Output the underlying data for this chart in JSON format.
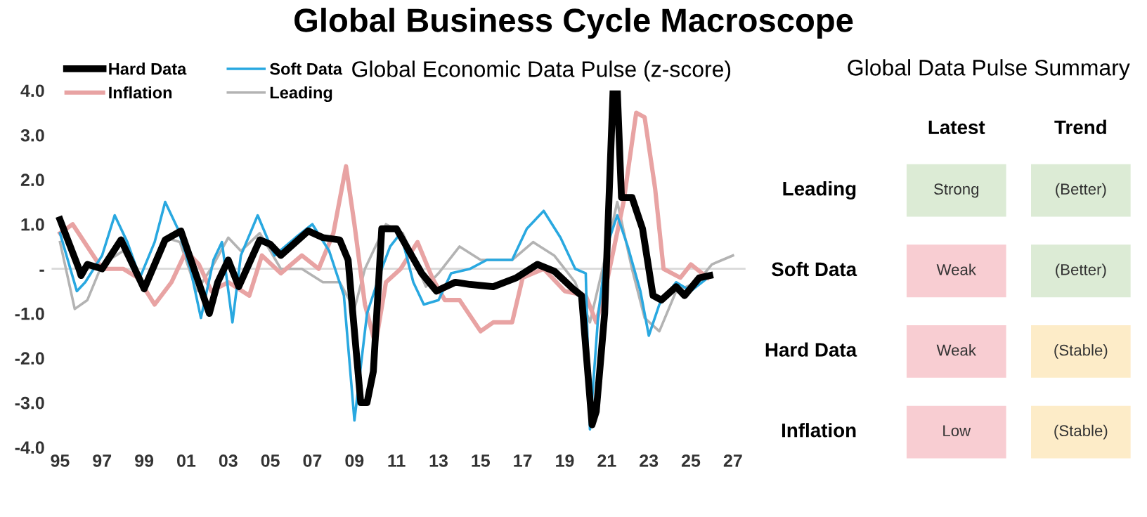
{
  "chart_data": [
    {
      "type": "line",
      "title": "Global Business Cycle Macroscope",
      "subtitle": "Global Economic Data Pulse (z-score)",
      "xlim": [
        1994.6,
        2027.6
      ],
      "ylim": [
        -4.0,
        4.0
      ],
      "xticks": [
        {
          "value": 1995,
          "label": "95"
        },
        {
          "value": 1997,
          "label": "97"
        },
        {
          "value": 1999,
          "label": "99"
        },
        {
          "value": 2001,
          "label": "01"
        },
        {
          "value": 2003,
          "label": "03"
        },
        {
          "value": 2005,
          "label": "05"
        },
        {
          "value": 2007,
          "label": "07"
        },
        {
          "value": 2009,
          "label": "09"
        },
        {
          "value": 2011,
          "label": "11"
        },
        {
          "value": 2013,
          "label": "13"
        },
        {
          "value": 2015,
          "label": "15"
        },
        {
          "value": 2017,
          "label": "17"
        },
        {
          "value": 2019,
          "label": "19"
        },
        {
          "value": 2021,
          "label": "21"
        },
        {
          "value": 2023,
          "label": "23"
        },
        {
          "value": 2025,
          "label": "25"
        },
        {
          "value": 2027,
          "label": "27"
        }
      ],
      "yticks": [
        {
          "value": 4,
          "label": "4.0"
        },
        {
          "value": 3,
          "label": "3.0"
        },
        {
          "value": 2,
          "label": "2.0"
        },
        {
          "value": 1,
          "label": "1.0"
        },
        {
          "value": 0,
          "label": "-"
        },
        {
          "value": -1,
          "label": "-1.0"
        },
        {
          "value": -2,
          "label": "-2.0"
        },
        {
          "value": -3,
          "label": "-3.0"
        },
        {
          "value": -4,
          "label": "-4.0"
        }
      ],
      "grid": false,
      "legend": "top left",
      "ref_lines": [
        {
          "axis": "y",
          "value": 0,
          "color": "#d9d9d9"
        }
      ],
      "series": [
        {
          "name": "Hard Data",
          "color": "#000000",
          "x": [
            1995.0,
            1995.9,
            1996.0,
            1996.3,
            1997.0,
            1997.9,
            1999.0,
            2000.0,
            2000.75,
            2002.1,
            2002.5,
            2003.0,
            2003.5,
            2004.5,
            2005.0,
            2005.5,
            2006.8,
            2007.5,
            2008.3,
            2008.7,
            2009.3,
            2009.6,
            2009.9,
            2010.3,
            2011.0,
            2012.2,
            2012.9,
            2013.8,
            2014.5,
            2015.6,
            2016.7,
            2017.7,
            2018.5,
            2019.4,
            2019.8,
            2020.3,
            2020.5,
            2020.9,
            2021.3,
            2021.5,
            2021.7,
            2022.2,
            2022.7,
            2023.2,
            2023.6,
            2024.3,
            2024.7,
            2025.4,
            2025.9
          ],
          "values": [
            1.1,
            0.0,
            -0.15,
            0.1,
            0.0,
            0.65,
            -0.45,
            0.65,
            0.85,
            -1.0,
            -0.3,
            0.2,
            -0.4,
            0.65,
            0.55,
            0.3,
            0.85,
            0.7,
            0.65,
            0.2,
            -3.0,
            -3.0,
            -2.3,
            0.9,
            0.9,
            -0.1,
            -0.5,
            -0.3,
            -0.35,
            -0.4,
            -0.2,
            0.1,
            -0.05,
            -0.45,
            -0.6,
            -3.5,
            -3.2,
            -1.0,
            4.0,
            4.0,
            1.6,
            1.6,
            0.9,
            -0.6,
            -0.7,
            -0.4,
            -0.6,
            -0.2,
            -0.15
          ]
        },
        {
          "name": "Soft Data",
          "color": "#29a8e0",
          "x": [
            1995.0,
            1995.8,
            1996.2,
            1997.0,
            1997.6,
            1998.2,
            1998.8,
            1999.5,
            2000.0,
            2000.6,
            2001.2,
            2001.7,
            2002.3,
            2002.7,
            2003.2,
            2003.6,
            2004.4,
            2005.2,
            2006.2,
            2007.0,
            2007.8,
            2008.5,
            2009.0,
            2009.6,
            2010.3,
            2010.7,
            2011.2,
            2011.8,
            2012.3,
            2013.0,
            2013.6,
            2014.5,
            2015.3,
            2016.5,
            2017.2,
            2018.0,
            2018.8,
            2019.5,
            2020.0,
            2020.2,
            2020.6,
            2021.0,
            2021.5,
            2022.0,
            2022.6,
            2023.0,
            2023.5,
            2024.3,
            2025.0,
            2025.8
          ],
          "values": [
            0.8,
            -0.5,
            -0.3,
            0.3,
            1.2,
            0.6,
            -0.2,
            0.6,
            1.5,
            0.9,
            0.0,
            -1.1,
            0.2,
            0.6,
            -1.2,
            0.3,
            1.2,
            0.3,
            0.7,
            1.0,
            0.4,
            -0.6,
            -3.4,
            -1.0,
            0.0,
            0.5,
            0.8,
            -0.3,
            -0.8,
            -0.7,
            -0.1,
            0.0,
            0.2,
            0.2,
            0.9,
            1.3,
            0.7,
            0.0,
            -0.1,
            -3.6,
            -1.0,
            0.5,
            1.2,
            0.5,
            -0.5,
            -1.5,
            -0.8,
            -0.3,
            -0.5,
            -0.2
          ]
        },
        {
          "name": "Inflation",
          "color": "#e8a3a3",
          "x": [
            1995.0,
            1995.6,
            1996.3,
            1997.0,
            1998.0,
            1998.7,
            1999.5,
            2000.3,
            2001.0,
            2001.6,
            2002.2,
            2003.0,
            2004.0,
            2004.6,
            2005.5,
            2006.5,
            2007.3,
            2008.0,
            2008.6,
            2009.0,
            2009.5,
            2010.0,
            2010.5,
            2011.2,
            2012.0,
            2012.7,
            2013.3,
            2014.0,
            2015.0,
            2015.6,
            2016.5,
            2017.0,
            2018.0,
            2019.0,
            2020.0,
            2020.5,
            2021.0,
            2021.8,
            2022.4,
            2022.8,
            2023.3,
            2023.7,
            2024.5,
            2025.0,
            2025.8
          ],
          "values": [
            0.8,
            1.0,
            0.5,
            0.0,
            0.0,
            -0.2,
            -0.8,
            -0.3,
            0.4,
            0.1,
            -0.5,
            -0.3,
            -0.6,
            0.3,
            -0.1,
            0.3,
            0.0,
            0.8,
            2.3,
            1.0,
            -0.8,
            -1.7,
            -0.3,
            0.0,
            0.6,
            -0.2,
            -0.7,
            -0.7,
            -1.4,
            -1.2,
            -1.2,
            -0.2,
            0.0,
            -0.5,
            -0.6,
            -1.2,
            -0.3,
            1.5,
            3.5,
            3.4,
            1.8,
            0.0,
            -0.2,
            0.1,
            -0.2
          ]
        },
        {
          "name": "Leading",
          "color": "#b3b3b3",
          "x": [
            1995.0,
            1995.7,
            1996.3,
            1997.0,
            1998.0,
            1999.0,
            2000.0,
            2000.7,
            2001.5,
            2002.3,
            2003.0,
            2003.6,
            2004.5,
            2005.5,
            2006.5,
            2007.5,
            2008.3,
            2009.0,
            2009.5,
            2010.5,
            2011.3,
            2012.4,
            2013.0,
            2014.0,
            2015.0,
            2016.5,
            2017.5,
            2018.5,
            2019.5,
            2020.2,
            2020.8,
            2021.5,
            2022.2,
            2022.8,
            2023.5,
            2024.3,
            2025.3,
            2026.0,
            2026.5,
            2027.0
          ],
          "values": [
            0.6,
            -0.9,
            -0.7,
            0.1,
            0.4,
            -0.4,
            0.7,
            0.6,
            -0.5,
            0.1,
            0.7,
            0.4,
            0.8,
            0.0,
            0.0,
            -0.3,
            -0.3,
            -0.9,
            0.0,
            1.0,
            0.8,
            -0.4,
            -0.1,
            0.5,
            0.2,
            0.2,
            0.6,
            0.3,
            -0.3,
            -1.2,
            0.0,
            1.5,
            0.0,
            -1.1,
            -1.4,
            -0.5,
            -0.3,
            0.1,
            0.2,
            0.3
          ]
        }
      ]
    },
    {
      "type": "other",
      "title": "Global Data Pulse Summary",
      "categories": [
        "Latest",
        "Trend"
      ],
      "y_categories": [
        "Leading",
        "Soft Data",
        "Hard Data",
        "Inflation"
      ],
      "cell_labels": [
        [
          "Strong",
          "(Better)"
        ],
        [
          "Weak",
          "(Better)"
        ],
        [
          "Weak",
          "(Stable)"
        ],
        [
          "Low",
          "(Stable)"
        ]
      ],
      "colors": [
        [
          "#dcebd5",
          "#dcebd5"
        ],
        [
          "#f8cdd2",
          "#dcebd5"
        ],
        [
          "#f8cdd2",
          "#fdecc8"
        ],
        [
          "#f8cdd2",
          "#fdecc8"
        ]
      ]
    }
  ]
}
